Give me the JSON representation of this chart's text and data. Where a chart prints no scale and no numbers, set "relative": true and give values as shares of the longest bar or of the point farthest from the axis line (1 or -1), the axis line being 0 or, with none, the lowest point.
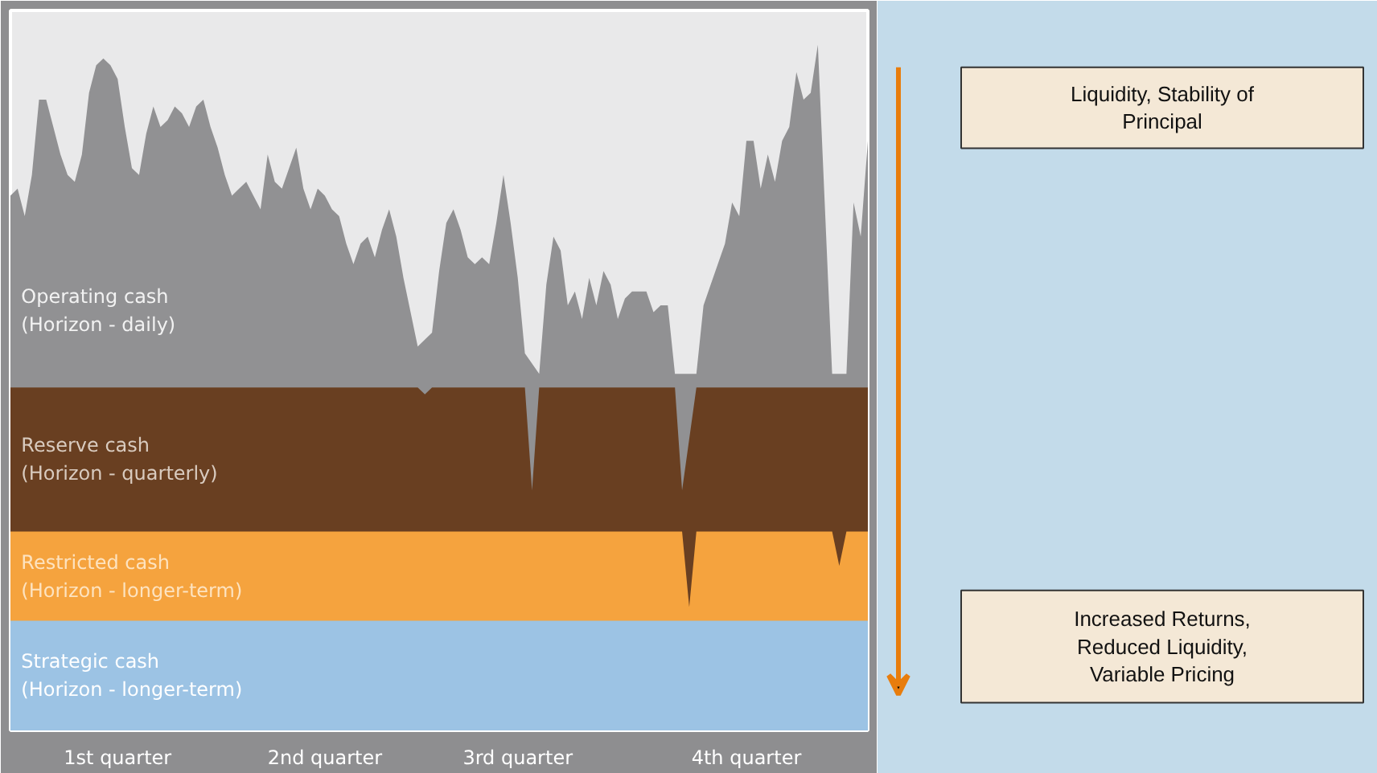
{
  "chart_data": {
    "type": "area",
    "relative": true,
    "categories": [
      null,
      null,
      null,
      null,
      null,
      null,
      null,
      null,
      null,
      null,
      null,
      null,
      null,
      null,
      null,
      "1st quarter",
      null,
      null,
      null,
      null,
      null,
      null,
      null,
      null,
      null,
      null,
      null,
      null,
      null,
      null,
      null,
      null,
      null,
      null,
      null,
      null,
      null,
      null,
      null,
      null,
      null,
      null,
      null,
      null,
      "2nd quarter",
      null,
      null,
      null,
      null,
      null,
      null,
      null,
      null,
      null,
      null,
      null,
      null,
      null,
      null,
      null,
      null,
      null,
      null,
      null,
      null,
      null,
      null,
      null,
      null,
      null,
      null,
      "3rd quarter",
      null,
      null,
      null,
      null,
      null,
      null,
      null,
      null,
      null,
      null,
      null,
      null,
      null,
      null,
      null,
      null,
      null,
      null,
      null,
      null,
      null,
      null,
      null,
      null,
      null,
      null,
      null,
      null,
      null,
      null,
      null,
      "4th quarter",
      null,
      null,
      null,
      null,
      null,
      null,
      null,
      null,
      null,
      null,
      null,
      null,
      null,
      null,
      null,
      null,
      null
    ],
    "series": [
      {
        "name": "Operating cash\n(Horizon - daily)",
        "color": "#919193",
        "values": [
          0.78,
          0.79,
          0.75,
          0.81,
          0.92,
          0.92,
          0.88,
          0.84,
          0.81,
          0.8,
          0.84,
          0.93,
          0.97,
          0.98,
          0.97,
          0.95,
          0.88,
          0.82,
          0.81,
          0.87,
          0.91,
          0.88,
          0.89,
          0.91,
          0.9,
          0.88,
          0.91,
          0.92,
          0.88,
          0.85,
          0.81,
          0.78,
          0.79,
          0.8,
          0.78,
          0.76,
          0.84,
          0.8,
          0.79,
          0.82,
          0.85,
          0.79,
          0.76,
          0.79,
          0.78,
          0.76,
          0.75,
          0.71,
          0.68,
          0.71,
          0.72,
          0.69,
          0.73,
          0.76,
          0.72,
          0.66,
          0.61,
          0.56,
          null,
          0.58,
          0.67,
          0.74,
          0.76,
          0.73,
          0.69,
          0.68,
          0.69,
          0.68,
          0.74,
          0.81,
          0.74,
          0.66,
          0.55,
          null,
          0.52,
          0.65,
          0.72,
          0.7,
          0.62,
          0.64,
          0.6,
          0.66,
          0.62,
          0.67,
          0.65,
          0.6,
          0.63,
          0.64,
          0.64,
          0.64,
          0.61,
          0.62,
          0.62,
          0.52,
          null,
          null,
          0.52,
          0.62,
          0.65,
          0.68,
          0.71,
          0.77,
          0.75,
          0.86,
          0.86,
          0.79,
          0.84,
          0.8,
          0.86,
          0.88,
          0.96,
          0.92,
          0.93,
          1.0,
          0.76,
          0.52,
          null,
          0.52,
          0.77,
          0.72,
          0.86
        ]
      },
      {
        "name": "Reserve cash\n(Horizon - quarterly)",
        "color": "#693f21",
        "values": [
          0.5,
          0.5,
          0.5,
          0.5,
          0.5,
          0.5,
          0.5,
          0.5,
          0.5,
          0.5,
          0.5,
          0.5,
          0.5,
          0.5,
          0.5,
          0.5,
          0.5,
          0.5,
          0.5,
          0.5,
          0.5,
          0.5,
          0.5,
          0.5,
          0.5,
          0.5,
          0.5,
          0.5,
          0.5,
          0.5,
          0.5,
          0.5,
          0.5,
          0.5,
          0.5,
          0.5,
          0.5,
          0.5,
          0.5,
          0.5,
          0.5,
          0.5,
          0.5,
          0.5,
          0.5,
          0.5,
          0.5,
          0.5,
          0.5,
          0.5,
          0.5,
          0.5,
          0.5,
          0.5,
          0.5,
          0.5,
          0.5,
          0.5,
          0.49,
          0.5,
          0.5,
          0.5,
          0.5,
          0.5,
          0.5,
          0.5,
          0.5,
          0.5,
          0.5,
          0.5,
          0.5,
          0.5,
          0.5,
          0.35,
          0.5,
          0.5,
          0.5,
          0.5,
          0.5,
          0.5,
          0.5,
          0.5,
          0.5,
          0.5,
          0.5,
          0.5,
          0.5,
          0.5,
          0.5,
          0.5,
          0.5,
          0.5,
          0.5,
          0.5,
          0.35,
          null,
          0.5,
          0.5,
          0.5,
          0.5,
          0.5,
          0.5,
          0.5,
          0.5,
          0.5,
          0.5,
          0.5,
          0.5,
          0.5,
          0.5,
          0.5,
          0.5,
          0.5,
          0.5,
          0.5,
          0.5,
          null,
          0.5,
          0.5,
          0.5,
          0.5
        ]
      },
      {
        "name": "Restricted cash\n(Horizon - longer-term)",
        "color": "#f5a33e",
        "values": [
          0.29,
          0.29,
          0.29,
          0.29,
          0.29,
          0.29,
          0.29,
          0.29,
          0.29,
          0.29,
          0.29,
          0.29,
          0.29,
          0.29,
          0.29,
          0.29,
          0.29,
          0.29,
          0.29,
          0.29,
          0.29,
          0.29,
          0.29,
          0.29,
          0.29,
          0.29,
          0.29,
          0.29,
          0.29,
          0.29,
          0.29,
          0.29,
          0.29,
          0.29,
          0.29,
          0.29,
          0.29,
          0.29,
          0.29,
          0.29,
          0.29,
          0.29,
          0.29,
          0.29,
          0.29,
          0.29,
          0.29,
          0.29,
          0.29,
          0.29,
          0.29,
          0.29,
          0.29,
          0.29,
          0.29,
          0.29,
          0.29,
          0.29,
          0.29,
          0.29,
          0.29,
          0.29,
          0.29,
          0.29,
          0.29,
          0.29,
          0.29,
          0.29,
          0.29,
          0.29,
          0.29,
          0.29,
          0.29,
          0.29,
          0.29,
          0.29,
          0.29,
          0.29,
          0.29,
          0.29,
          0.29,
          0.29,
          0.29,
          0.29,
          0.29,
          0.29,
          0.29,
          0.29,
          0.29,
          0.29,
          0.29,
          0.29,
          0.29,
          0.29,
          0.29,
          0.18,
          0.29,
          0.29,
          0.29,
          0.29,
          0.29,
          0.29,
          0.29,
          0.29,
          0.29,
          0.29,
          0.29,
          0.29,
          0.29,
          0.29,
          0.29,
          0.29,
          0.29,
          0.29,
          0.29,
          0.29,
          0.24,
          0.29,
          0.29,
          0.29,
          0.29
        ]
      },
      {
        "name": "Strategic cash\n(Horizon - longer-term)",
        "color": "#9cc3e4",
        "values": [
          0.16,
          0.16,
          0.16,
          0.16,
          0.16,
          0.16,
          0.16,
          0.16,
          0.16,
          0.16,
          0.16,
          0.16,
          0.16,
          0.16,
          0.16,
          0.16,
          0.16,
          0.16,
          0.16,
          0.16,
          0.16,
          0.16,
          0.16,
          0.16,
          0.16,
          0.16,
          0.16,
          0.16,
          0.16,
          0.16,
          0.16,
          0.16,
          0.16,
          0.16,
          0.16,
          0.16,
          0.16,
          0.16,
          0.16,
          0.16,
          0.16,
          0.16,
          0.16,
          0.16,
          0.16,
          0.16,
          0.16,
          0.16,
          0.16,
          0.16,
          0.16,
          0.16,
          0.16,
          0.16,
          0.16,
          0.16,
          0.16,
          0.16,
          0.16,
          0.16,
          0.16,
          0.16,
          0.16,
          0.16,
          0.16,
          0.16,
          0.16,
          0.16,
          0.16,
          0.16,
          0.16,
          0.16,
          0.16,
          0.16,
          0.16,
          0.16,
          0.16,
          0.16,
          0.16,
          0.16,
          0.16,
          0.16,
          0.16,
          0.16,
          0.16,
          0.16,
          0.16,
          0.16,
          0.16,
          0.16,
          0.16,
          0.16,
          0.16,
          0.16,
          0.16,
          0.16,
          0.16,
          0.16,
          0.16,
          0.16,
          0.16,
          0.16,
          0.16,
          0.16,
          0.16,
          0.16,
          0.16,
          0.16,
          0.16,
          0.16,
          0.16,
          0.16,
          0.16,
          0.16,
          0.16,
          0.16,
          0.16,
          0.16,
          0.16,
          0.16,
          0.16
        ]
      }
    ],
    "annotations": [
      "Liquidity, Stability of Principal",
      "Increased Returns, Reduced Liquidity, Variable Pricing"
    ]
  }
}
